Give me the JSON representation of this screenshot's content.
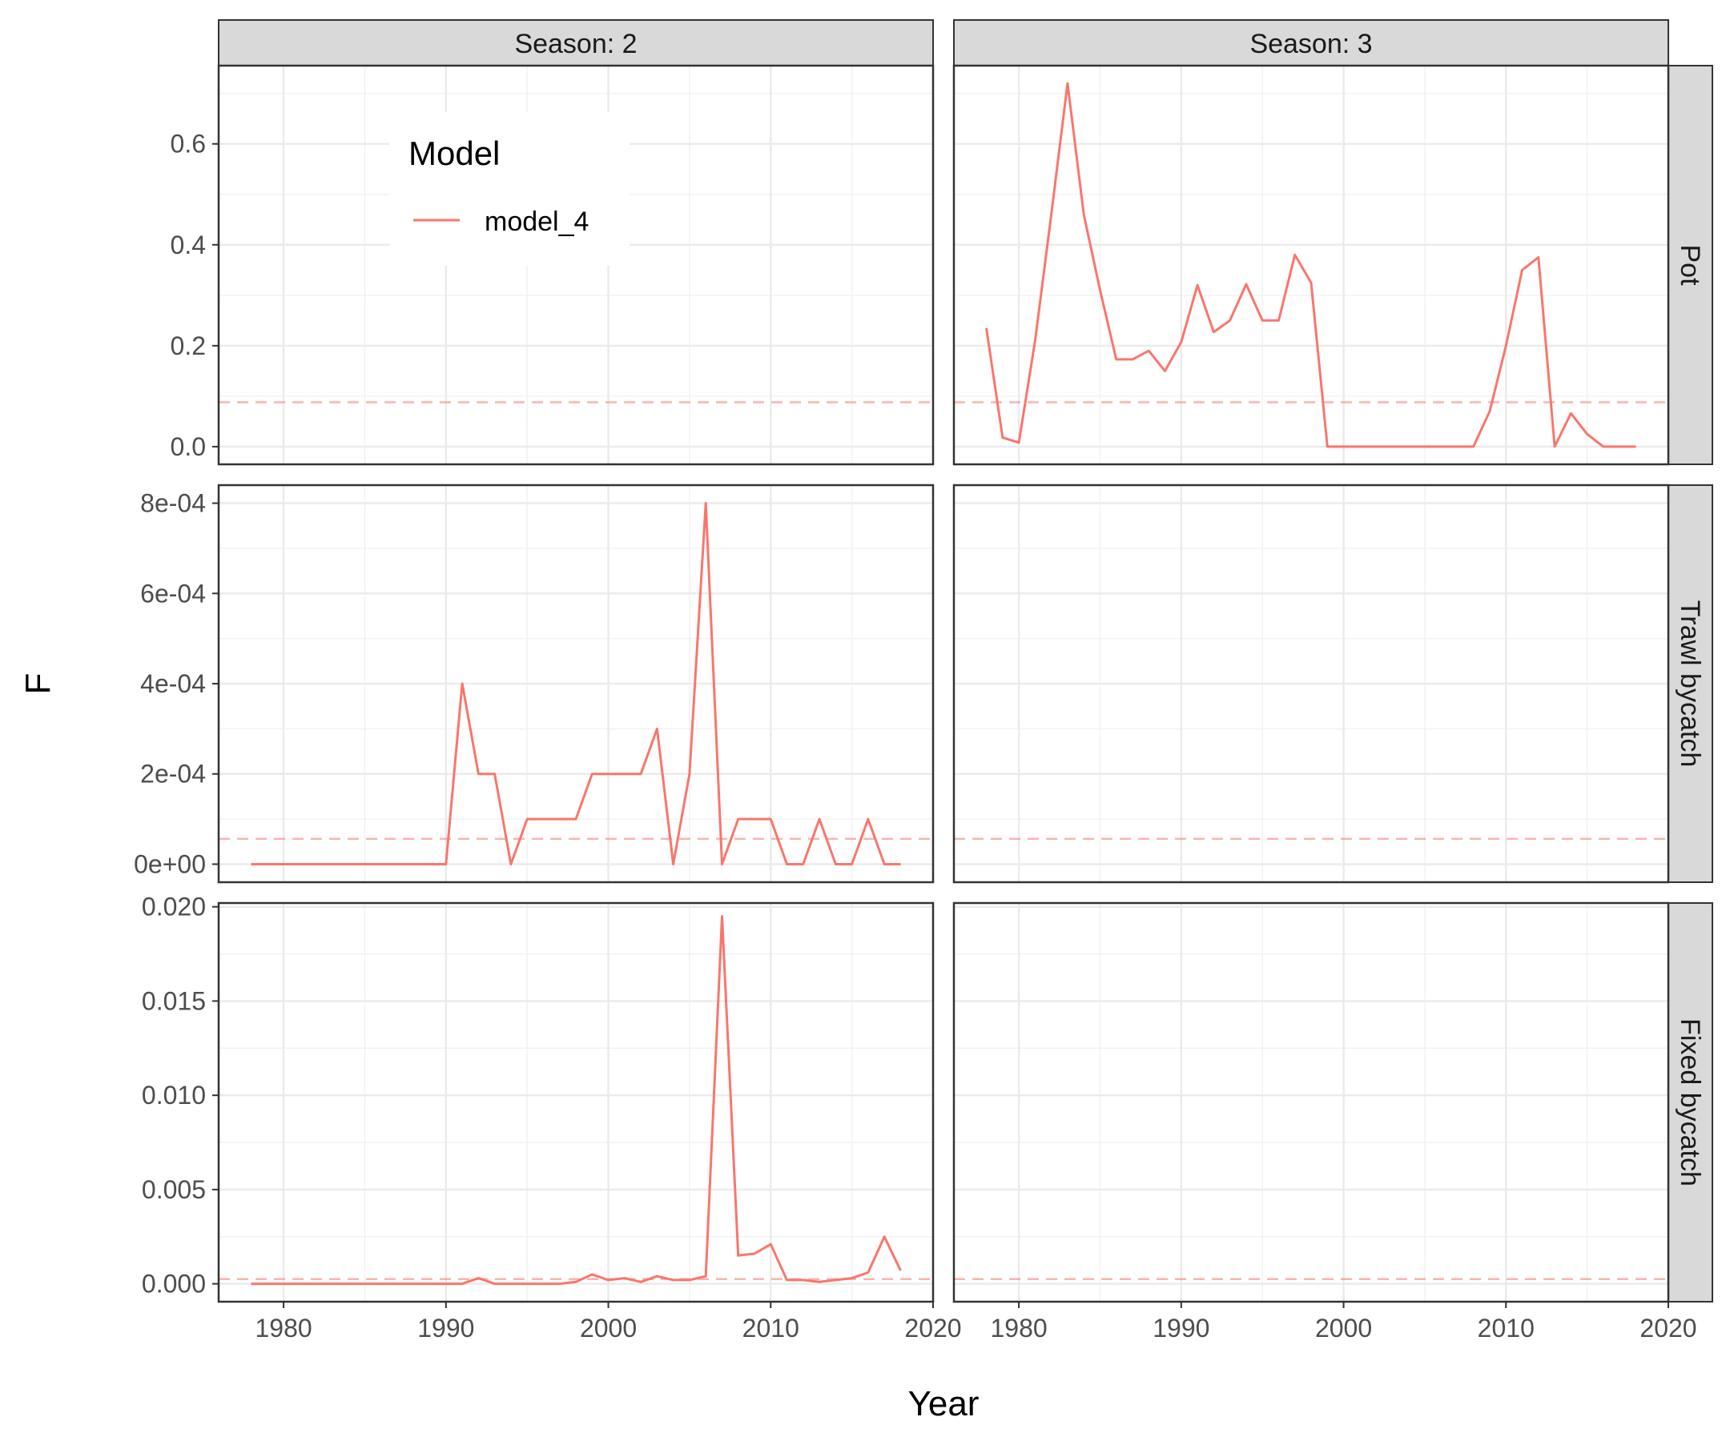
{
  "chart_data": {
    "type": "line",
    "title": "",
    "xlabel": "Year",
    "ylabel": "F",
    "xlim": [
      1976.0,
      2020.0
    ],
    "x_ticks": [
      1980,
      1990,
      2000,
      2010,
      2020
    ],
    "x_tick_labels": [
      "1980",
      "1990",
      "2000",
      "2010",
      "2020"
    ],
    "grid": true,
    "legend": {
      "title": "Model",
      "position": "inside-top-left",
      "entries": [
        {
          "label": "model_4",
          "color": "#F8766D"
        }
      ]
    },
    "facet_columns": [
      "Season: 2",
      "Season: 3"
    ],
    "facet_rows": [
      "Pot",
      "Trawl bycatch",
      "Fixed bycatch"
    ],
    "series_color": "#F8766D",
    "reference_line_color": "#F8766D",
    "rows": [
      {
        "label": "Pot",
        "ylim": [
          -0.035,
          0.755
        ],
        "y_ticks": [
          0.0,
          0.2,
          0.4,
          0.6
        ],
        "y_tick_labels": [
          "0.0",
          "0.2",
          "0.4",
          "0.6"
        ],
        "reference_line": 0.088
      },
      {
        "label": "Trawl bycatch",
        "ylim": [
          -4e-05,
          0.00084
        ],
        "y_ticks": [
          0.0,
          0.0002,
          0.0004,
          0.0006,
          0.0008
        ],
        "y_tick_labels": [
          "0e+00",
          "2e-04",
          "4e-04",
          "6e-04",
          "8e-04"
        ],
        "reference_line": 5.6e-05
      },
      {
        "label": "Fixed bycatch",
        "ylim": [
          -0.00095,
          0.0202
        ],
        "y_ticks": [
          0.0,
          0.005,
          0.01,
          0.015,
          0.02
        ],
        "y_tick_labels": [
          "0.000",
          "0.005",
          "0.010",
          "0.015",
          "0.020"
        ],
        "reference_line": 0.00025
      }
    ],
    "panels": [
      {
        "column": "Season: 2",
        "row": "Pot",
        "series": []
      },
      {
        "column": "Season: 3",
        "row": "Pot",
        "series": [
          {
            "name": "model_4",
            "x": [
              1978,
              1979,
              1980,
              1981,
              1982,
              1983,
              1984,
              1985,
              1986,
              1987,
              1988,
              1989,
              1990,
              1991,
              1992,
              1993,
              1994,
              1995,
              1996,
              1997,
              1998,
              1999,
              2000,
              2001,
              2002,
              2003,
              2004,
              2005,
              2006,
              2007,
              2008,
              2009,
              2010,
              2011,
              2012,
              2013,
              2014,
              2015,
              2016,
              2017,
              2018
            ],
            "y": [
              0.235,
              0.018,
              0.008,
              0.21,
              0.46,
              0.72,
              0.46,
              0.31,
              0.173,
              0.173,
              0.19,
              0.15,
              0.207,
              0.32,
              0.227,
              0.25,
              0.322,
              0.25,
              0.25,
              0.38,
              0.325,
              0.0,
              0.0,
              0.0,
              0.0,
              0.0,
              0.0,
              0.0,
              0.0,
              0.0,
              0.0,
              0.07,
              0.2,
              0.35,
              0.375,
              0.0,
              0.066,
              0.025,
              0.0,
              0.0,
              0.0
            ]
          }
        ]
      },
      {
        "column": "Season: 2",
        "row": "Trawl bycatch",
        "series": [
          {
            "name": "model_4",
            "x": [
              1978,
              1979,
              1980,
              1981,
              1982,
              1983,
              1984,
              1985,
              1986,
              1987,
              1988,
              1989,
              1990,
              1991,
              1992,
              1993,
              1994,
              1995,
              1996,
              1997,
              1998,
              1999,
              2000,
              2001,
              2002,
              2003,
              2004,
              2005,
              2006,
              2007,
              2008,
              2009,
              2010,
              2011,
              2012,
              2013,
              2014,
              2015,
              2016,
              2017,
              2018
            ],
            "y": [
              0.0,
              0.0,
              0.0,
              0.0,
              0.0,
              0.0,
              0.0,
              0.0,
              0.0,
              0.0,
              0.0,
              0.0,
              0.0,
              0.0004,
              0.0002,
              0.0002,
              0.0,
              0.0001,
              0.0001,
              0.0001,
              0.0001,
              0.0002,
              0.0002,
              0.0002,
              0.0002,
              0.0003,
              0.0,
              0.0002,
              0.0008,
              0.0,
              0.0001,
              0.0001,
              0.0001,
              0.0,
              0.0,
              0.0001,
              0.0,
              0.0,
              0.0001,
              0.0,
              0.0
            ]
          }
        ]
      },
      {
        "column": "Season: 3",
        "row": "Trawl bycatch",
        "series": []
      },
      {
        "column": "Season: 2",
        "row": "Fixed bycatch",
        "series": [
          {
            "name": "model_4",
            "x": [
              1978,
              1979,
              1980,
              1981,
              1982,
              1983,
              1984,
              1985,
              1986,
              1987,
              1988,
              1989,
              1990,
              1991,
              1992,
              1993,
              1994,
              1995,
              1996,
              1997,
              1998,
              1999,
              2000,
              2001,
              2002,
              2003,
              2004,
              2005,
              2006,
              2007,
              2008,
              2009,
              2010,
              2011,
              2012,
              2013,
              2014,
              2015,
              2016,
              2017,
              2018
            ],
            "y": [
              0.0,
              0.0,
              0.0,
              0.0,
              0.0,
              0.0,
              0.0,
              0.0,
              0.0,
              0.0,
              0.0,
              0.0,
              0.0,
              0.0,
              0.0003,
              0.0,
              0.0,
              0.0,
              0.0,
              0.0,
              0.0001,
              0.0005,
              0.0002,
              0.0003,
              0.0001,
              0.0004,
              0.0002,
              0.0002,
              0.0004,
              0.0195,
              0.0015,
              0.0016,
              0.0021,
              0.0002,
              0.0002,
              0.0001,
              0.0002,
              0.0003,
              0.0006,
              0.0025,
              0.0007
            ]
          }
        ]
      },
      {
        "column": "Season: 3",
        "row": "Fixed bycatch",
        "series": []
      }
    ]
  }
}
